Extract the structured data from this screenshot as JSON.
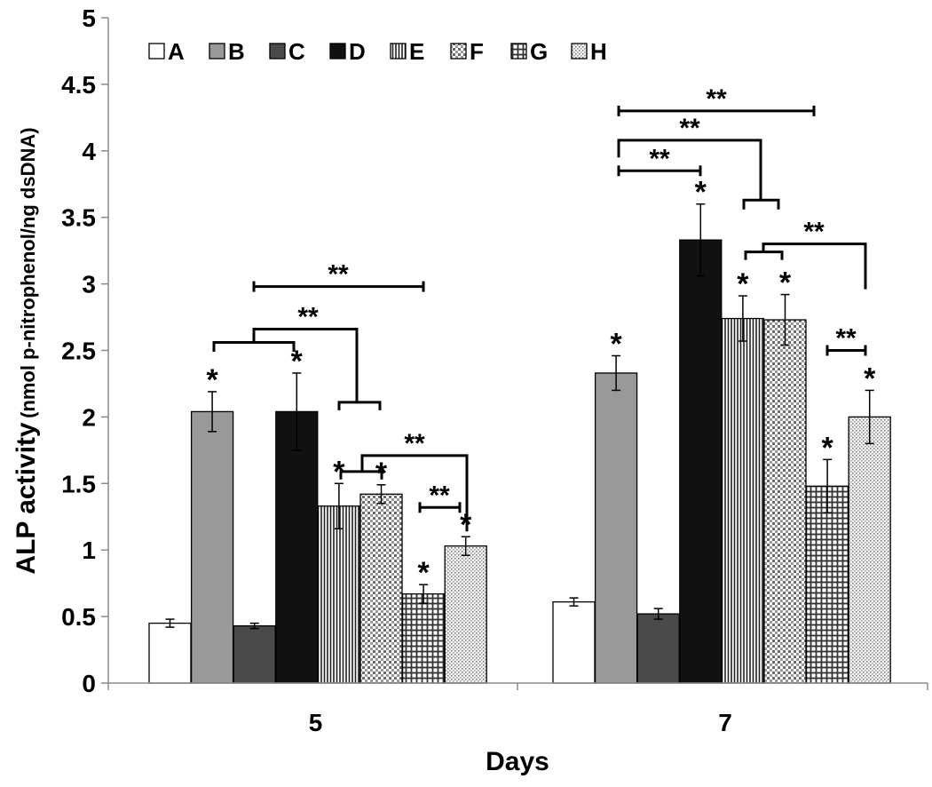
{
  "chart_data": {
    "type": "bar",
    "xlabel": "Days",
    "ylabel": "ALP activity",
    "ylabel_unit": "(nmol p-nitrophenol/ng dsDNA)",
    "ylim": [
      0,
      5
    ],
    "yticks": [
      "0",
      "0.5",
      "1",
      "1.5",
      "2",
      "2.5",
      "3",
      "3.5",
      "4",
      "4.5",
      "5"
    ],
    "categories": [
      "5",
      "7"
    ],
    "legend_position": "top-left",
    "series": [
      {
        "name": "A",
        "values": [
          0.45,
          0.61
        ],
        "errors": [
          0.03,
          0.03
        ],
        "star": [
          false,
          false
        ]
      },
      {
        "name": "B",
        "values": [
          2.04,
          2.33
        ],
        "errors": [
          0.15,
          0.13
        ],
        "star": [
          true,
          true
        ]
      },
      {
        "name": "C",
        "values": [
          0.43,
          0.52
        ],
        "errors": [
          0.02,
          0.04
        ],
        "star": [
          false,
          false
        ]
      },
      {
        "name": "D",
        "values": [
          2.04,
          3.33
        ],
        "errors": [
          0.29,
          0.27
        ],
        "star": [
          true,
          true
        ]
      },
      {
        "name": "E",
        "values": [
          1.33,
          2.74
        ],
        "errors": [
          0.17,
          0.17
        ],
        "star": [
          true,
          true
        ]
      },
      {
        "name": "F",
        "values": [
          1.42,
          2.73
        ],
        "errors": [
          0.07,
          0.19
        ],
        "star": [
          true,
          true
        ]
      },
      {
        "name": "G",
        "values": [
          0.67,
          1.48
        ],
        "errors": [
          0.07,
          0.2
        ],
        "star": [
          true,
          true
        ]
      },
      {
        "name": "H",
        "values": [
          1.03,
          2.0
        ],
        "errors": [
          0.07,
          0.2
        ],
        "star": [
          true,
          true
        ]
      }
    ],
    "significance_label": "**",
    "star_label": "*"
  }
}
